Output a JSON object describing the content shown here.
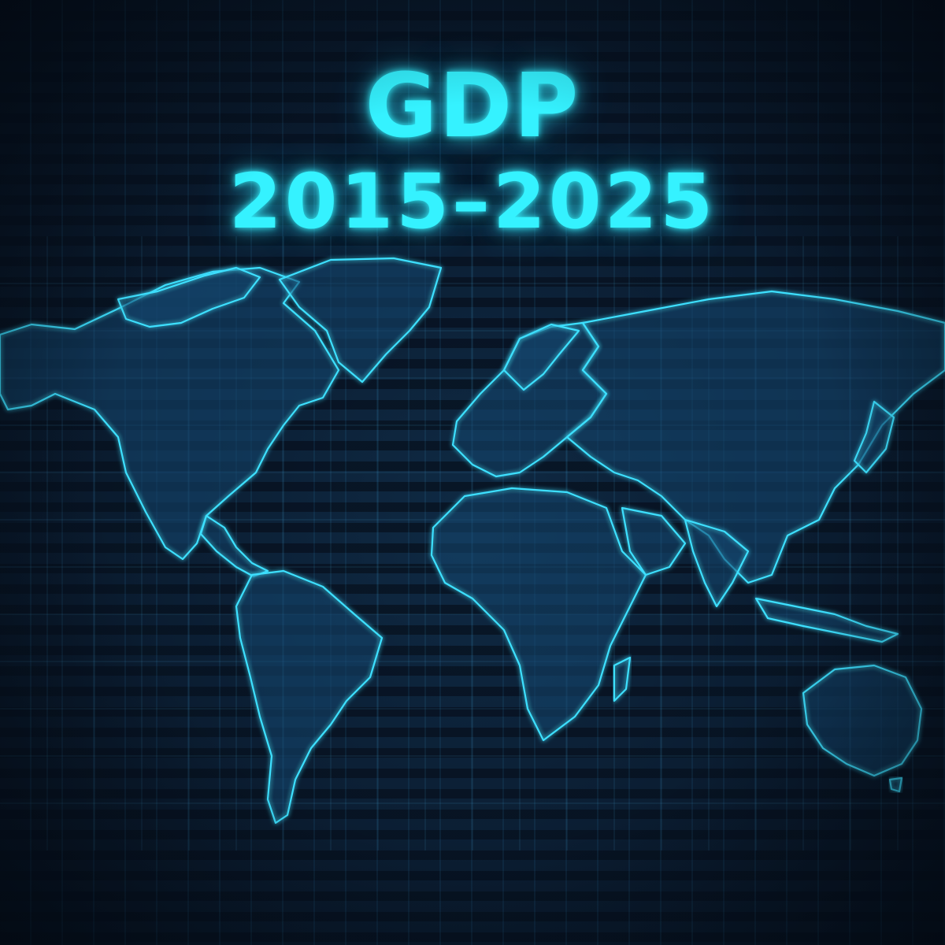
{
  "title": {
    "line1": "GDP",
    "line2": "2015–2025"
  },
  "colors": {
    "background": "#0a1a2c",
    "glow": "#35f2ff",
    "map_outline": "#3ee0ff"
  },
  "map": {
    "icon": "world-map-icon"
  }
}
